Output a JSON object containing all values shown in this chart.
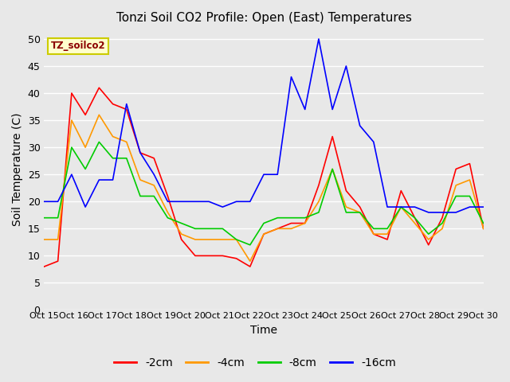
{
  "title": "Tonzi Soil CO2 Profile: Open (East) Temperatures",
  "xlabel": "Time",
  "ylabel": "Soil Temperature (C)",
  "legend_label": "TZ_soilco2",
  "series_labels": [
    "-2cm",
    "-4cm",
    "-8cm",
    "-16cm"
  ],
  "series_colors": [
    "#ff0000",
    "#ff9900",
    "#00cc00",
    "#0000ff"
  ],
  "ylim": [
    0,
    52
  ],
  "yticks": [
    0,
    5,
    10,
    15,
    20,
    25,
    30,
    35,
    40,
    45,
    50
  ],
  "xtick_labels": [
    "Oct 15",
    "Oct 16",
    "Oct 17",
    "Oct 18",
    "Oct 19",
    "Oct 20",
    "Oct 21",
    "Oct 22",
    "Oct 23",
    "Oct 24",
    "Oct 25",
    "Oct 26",
    "Oct 27",
    "Oct 28",
    "Oct 29",
    "Oct 30"
  ],
  "background_color": "#e8e8e8",
  "plot_bg_color": "#e8e8e8",
  "grid_color": "#ffffff",
  "red_2cm": [
    8,
    9,
    40,
    36,
    41,
    38,
    37,
    29,
    28,
    21,
    13,
    10,
    10,
    10,
    9.5,
    8,
    14,
    15,
    16,
    16,
    23,
    32,
    22,
    19,
    14,
    13,
    22,
    17,
    12,
    17,
    26,
    27,
    15
  ],
  "orange_4cm": [
    13,
    13,
    35,
    30,
    36,
    32,
    31,
    24,
    23,
    18,
    14,
    13,
    13,
    13,
    13,
    9,
    14,
    15,
    15,
    16,
    20,
    26,
    19,
    18,
    14,
    14,
    19,
    16,
    13,
    15,
    23,
    24,
    15
  ],
  "green_8cm": [
    17,
    17,
    30,
    26,
    31,
    28,
    28,
    21,
    21,
    17,
    16,
    15,
    15,
    15,
    13,
    12,
    16,
    17,
    17,
    17,
    18,
    26,
    18,
    18,
    15,
    15,
    19,
    17,
    14,
    16,
    21,
    21,
    16
  ],
  "blue_16cm": [
    20,
    20,
    25,
    19,
    24,
    24,
    38,
    29,
    25,
    20,
    20,
    20,
    20,
    19,
    20,
    20,
    25,
    25,
    43,
    37,
    50,
    37,
    45,
    34,
    31,
    19,
    19,
    19,
    18,
    18,
    18,
    19,
    19
  ]
}
